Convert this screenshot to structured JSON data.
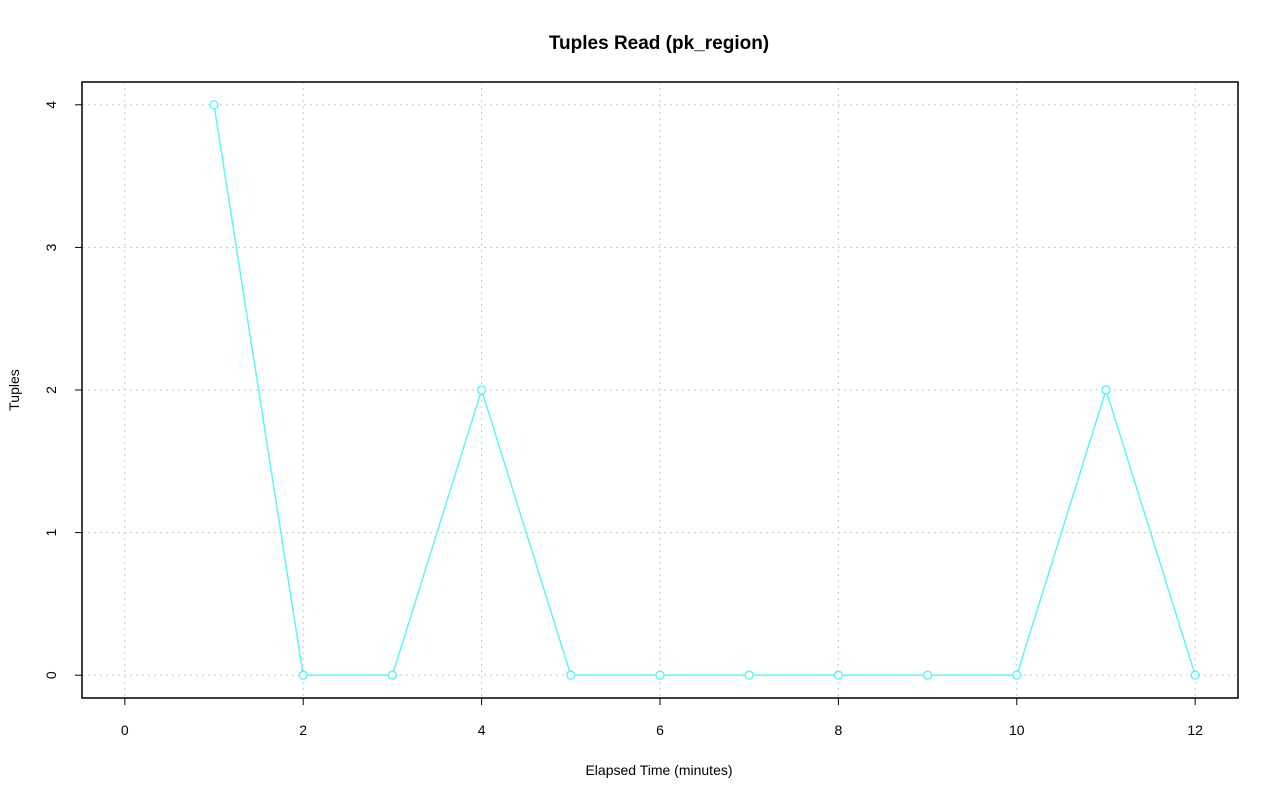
{
  "chart_data": {
    "type": "line",
    "title": "Tuples Read (pk_region)",
    "x_label": "Elapsed Time (minutes)",
    "y_label": "Tuples",
    "x": [
      1,
      2,
      3,
      4,
      5,
      6,
      7,
      8,
      9,
      10,
      11,
      12
    ],
    "values": [
      4,
      0,
      0,
      2,
      0,
      0,
      0,
      0,
      0,
      0,
      2,
      0
    ],
    "color": "#5ff5f5",
    "xlim": [
      -0.48,
      12.48
    ],
    "xticks": [
      0,
      2,
      4,
      6,
      8,
      10,
      12
    ],
    "ylim": [
      -0.16,
      4.16
    ],
    "yticks": [
      0,
      1,
      2,
      3,
      4
    ],
    "grid": true
  }
}
